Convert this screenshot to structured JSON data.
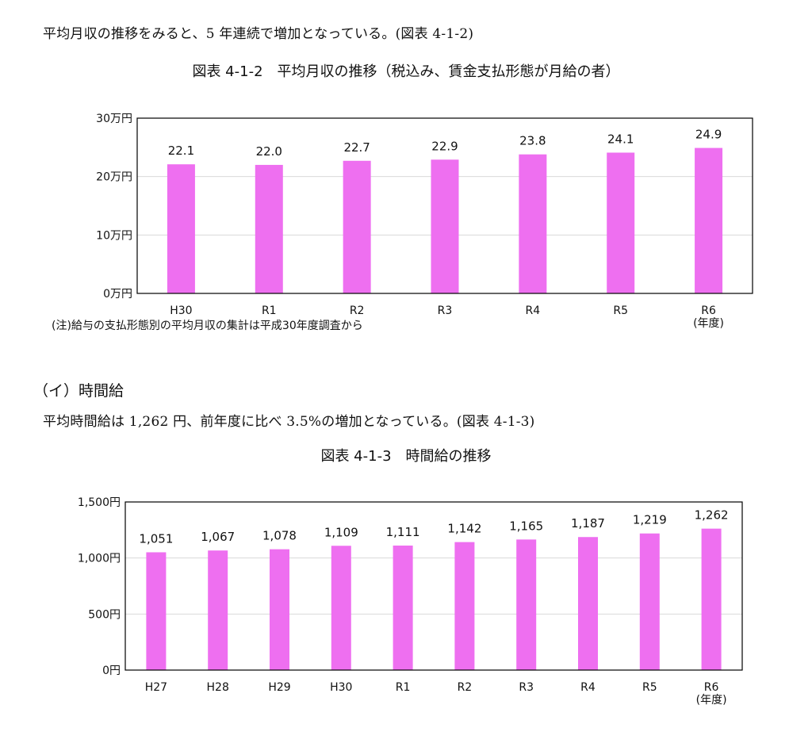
{
  "section1": {
    "paragraph": "平均月収の推移をみると、5 年連続で増加となっている。(図表 4-1-2)",
    "figure_title": "図表 4-1-2　平均月収の推移（税込み、賃金支払形態が月給の者）",
    "note": "(注)給与の支払形態別の平均月収の集計は平成30年度調査から",
    "x_unit": "(年度)"
  },
  "section2": {
    "heading": "（イ）時間給",
    "paragraph": "平均時間給は 1,262 円、前年度に比べ 3.5%の増加となっている。(図表 4-1-3)",
    "figure_title": "図表 4-1-3　時間給の推移",
    "x_unit": "(年度)"
  },
  "colors": {
    "bar": "#ee6ff0",
    "gridline": "#d9d9d9",
    "frame": "#000000"
  },
  "chart_data": [
    {
      "type": "bar",
      "title": "図表 4-1-2　平均月収の推移（税込み、賃金支払形態が月給の者）",
      "categories": [
        "H30",
        "R1",
        "R2",
        "R3",
        "R4",
        "R5",
        "R6"
      ],
      "values": [
        22.1,
        22.0,
        22.7,
        22.9,
        23.8,
        24.1,
        24.9
      ],
      "value_labels": [
        "22.1",
        "22.0",
        "22.7",
        "22.9",
        "23.8",
        "24.1",
        "24.9"
      ],
      "y_ticks": [
        "0万円",
        "10万円",
        "20万円",
        "30万円"
      ],
      "ylim": [
        0,
        30
      ],
      "grid": true
    },
    {
      "type": "bar",
      "title": "図表 4-1-3　時間給の推移",
      "categories": [
        "H27",
        "H28",
        "H29",
        "H30",
        "R1",
        "R2",
        "R3",
        "R4",
        "R5",
        "R6"
      ],
      "values": [
        1051,
        1067,
        1078,
        1109,
        1111,
        1142,
        1165,
        1187,
        1219,
        1262
      ],
      "value_labels": [
        "1,051",
        "1,067",
        "1,078",
        "1,109",
        "1,111",
        "1,142",
        "1,165",
        "1,187",
        "1,219",
        "1,262"
      ],
      "y_ticks": [
        "0円",
        "500円",
        "1,000円",
        "1,500円"
      ],
      "ylim": [
        0,
        1500
      ],
      "grid": true
    }
  ]
}
